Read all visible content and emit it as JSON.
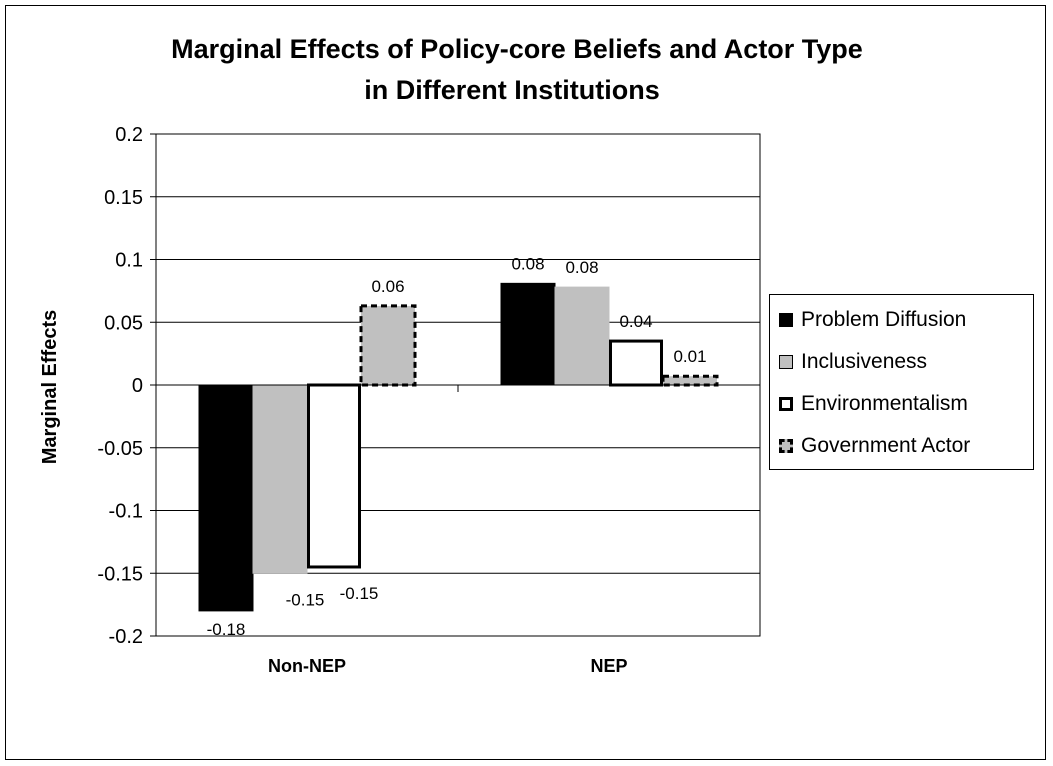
{
  "chart_data": {
    "type": "bar",
    "title_lines": [
      "Marginal Effects of Policy-core Beliefs and Actor Type",
      "in Different Institutions"
    ],
    "ylabel": "Marginal Effects",
    "xlabel": "",
    "categories": [
      "Non-NEP",
      "NEP"
    ],
    "ylim": [
      -0.2,
      0.2
    ],
    "yticks": [
      "0.2",
      "0.15",
      "0.1",
      "0.05",
      "0",
      "-0.05",
      "-0.1",
      "-0.15",
      "-0.2"
    ],
    "grid": true,
    "legend_position": "right",
    "series": [
      {
        "name": "Problem Diffusion",
        "values": [
          -0.18,
          0.081
        ],
        "labels": [
          "-0.18",
          "0.08"
        ],
        "fill": "#000000",
        "stroke": "#000000",
        "style": "solid"
      },
      {
        "name": "Inclusiveness",
        "values": [
          -0.15,
          0.078
        ],
        "labels": [
          "-0.15",
          "0.08"
        ],
        "fill": "#c0c0c0",
        "stroke": "#c0c0c0",
        "style": "solid"
      },
      {
        "name": "Environmentalism",
        "values": [
          -0.145,
          0.035
        ],
        "labels": [
          "-0.15",
          "0.04"
        ],
        "fill": "#ffffff",
        "stroke": "#000000",
        "style": "solid"
      },
      {
        "name": "Government Actor",
        "values": [
          0.063,
          0.007
        ],
        "labels": [
          "0.06",
          "0.01"
        ],
        "fill": "#c0c0c0",
        "stroke": "#000000",
        "style": "dashed"
      }
    ]
  }
}
